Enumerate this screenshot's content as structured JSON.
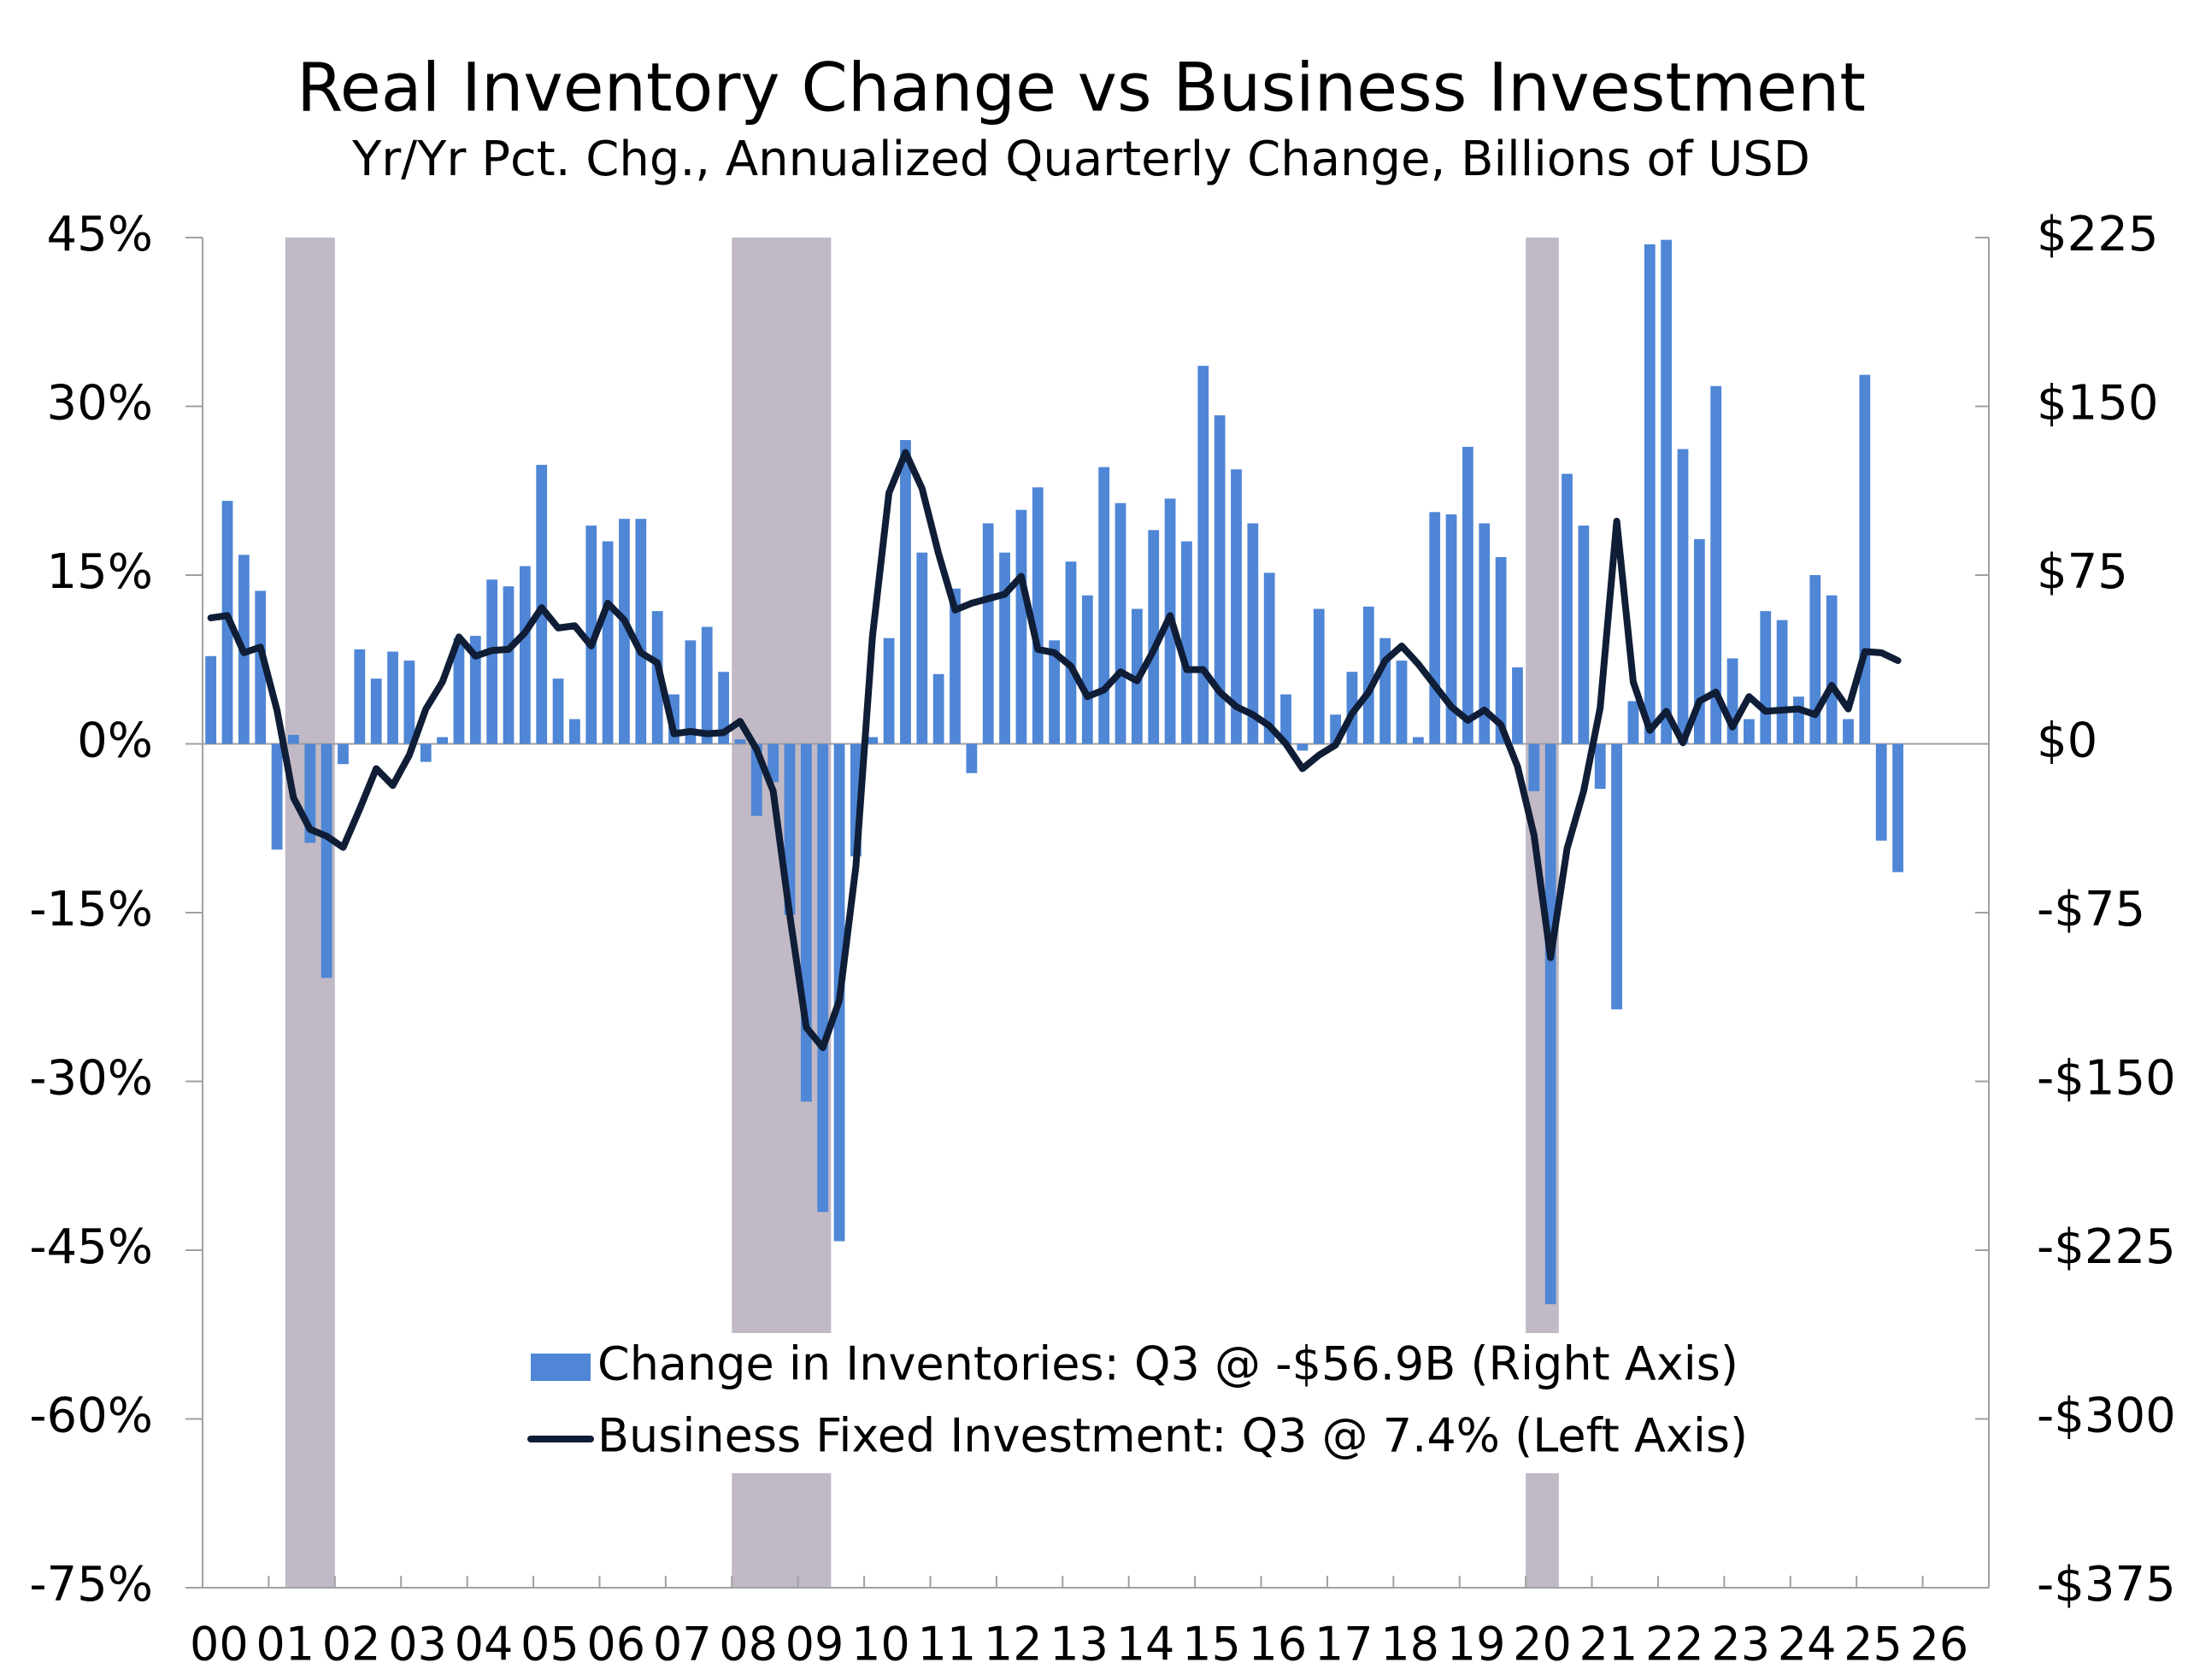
{
  "chart_data": {
    "type": "bar_line",
    "title": "Real Inventory Change vs Business Investment",
    "subtitle": "Yr/Yr Pct. Chg., Annualized Quarterly Change, Billions of USD",
    "x": [
      0,
      0.25,
      0.5,
      0.75,
      1,
      1.25,
      1.5,
      1.75,
      2,
      2.25,
      2.5,
      2.75,
      3,
      3.25,
      3.5,
      3.75,
      4,
      4.25,
      4.5,
      4.75,
      5,
      5.25,
      5.5,
      5.75,
      6,
      6.25,
      6.5,
      6.75,
      7,
      7.25,
      7.5,
      7.75,
      8,
      8.25,
      8.5,
      8.75,
      9,
      9.25,
      9.5,
      9.75,
      10,
      10.25,
      10.5,
      10.75,
      11,
      11.25,
      11.5,
      11.75,
      12,
      12.25,
      12.5,
      12.75,
      13,
      13.25,
      13.5,
      13.75,
      14,
      14.25,
      14.5,
      14.75,
      15,
      15.25,
      15.5,
      15.75,
      16,
      16.25,
      16.5,
      16.75,
      17,
      17.25,
      17.5,
      17.75,
      18,
      18.25,
      18.5,
      18.75,
      19,
      19.25,
      19.5,
      19.75,
      20,
      20.25,
      20.5,
      20.75,
      21,
      21.25,
      21.5,
      21.75,
      22,
      22.25,
      22.5,
      22.75,
      23,
      23.25,
      23.5,
      23.75,
      24,
      24.25,
      24.5,
      24.75,
      25,
      25.25,
      25.5
    ],
    "series": [
      {
        "name": "Change in Inventories: Q3 @ -$56.9B (Right Axis)",
        "type": "bar",
        "axis": "y2",
        "color": "#4f86d6",
        "values": [
          39,
          108,
          84,
          68,
          -47,
          4,
          -44,
          -104,
          -9,
          42,
          29,
          41,
          37,
          -8,
          3,
          47,
          48,
          73,
          70,
          79,
          124,
          29,
          11,
          97,
          90,
          100,
          100,
          59,
          22,
          46,
          52,
          32,
          2,
          -32,
          -17,
          -76,
          -159,
          -208,
          -221,
          -50,
          3,
          47,
          135,
          85,
          31,
          69,
          -13,
          98,
          85,
          104,
          114,
          46,
          81,
          66,
          123,
          107,
          60,
          95,
          109,
          90,
          168,
          146,
          122,
          98,
          76,
          22,
          -3,
          60,
          13,
          32,
          61,
          47,
          37,
          3,
          103,
          102,
          132,
          98,
          83,
          34,
          -21,
          -249,
          120,
          97,
          -20,
          -118,
          19,
          222,
          224,
          131,
          91,
          159,
          38,
          11,
          59,
          55,
          21,
          75,
          66,
          11,
          164,
          -43,
          -57
        ]
      },
      {
        "name": "Business Fixed Investment: Q3 @ 7.4% (Left Axis)",
        "type": "line",
        "axis": "y",
        "color": "#0f1d36",
        "values": [
          11.2,
          11.4,
          8.1,
          8.6,
          3,
          -4.8,
          -7.6,
          -8.2,
          -9.2,
          -5.8,
          -2.2,
          -3.7,
          -1,
          3.1,
          5.5,
          9.5,
          7.8,
          8.3,
          8.4,
          9.9,
          12.1,
          10.3,
          10.5,
          8.7,
          12.5,
          11,
          8.1,
          7.2,
          0.9,
          1.1,
          0.9,
          1,
          2,
          -0.5,
          -4.2,
          -15.2,
          -25.2,
          -27,
          -22.8,
          -10.9,
          9.5,
          22.3,
          25.9,
          22.7,
          16.9,
          11.9,
          12.5,
          12.9,
          13.3,
          14.9,
          8.4,
          8.1,
          6.9,
          4.2,
          4.8,
          6.4,
          5.6,
          8.3,
          11.4,
          6.6,
          6.6,
          4.6,
          3.3,
          2.6,
          1.6,
          0,
          -2.2,
          -1,
          -0.1,
          2.7,
          4.6,
          7.4,
          8.7,
          7.1,
          5.2,
          3.3,
          2.1,
          3,
          1.7,
          -2,
          -8.1,
          -19,
          -9.3,
          -4.2,
          3.2,
          19.8,
          5.5,
          1.2,
          2.9,
          0.1,
          3.8,
          4.6,
          1.5,
          4.2,
          2.9,
          3,
          3.1,
          2.6,
          5.2,
          3.1,
          8.2,
          8.1,
          7.4
        ]
      }
    ],
    "shading": [
      [
        1.25,
        2
      ],
      [
        8,
        9.5
      ],
      [
        20,
        20.5
      ]
    ],
    "shading_color": "#c1b9c5",
    "xlim": [
      0,
      27
    ],
    "xticks": [
      {
        "value": 0,
        "label": "00"
      },
      {
        "value": 1,
        "label": "01"
      },
      {
        "value": 2,
        "label": "02"
      },
      {
        "value": 3,
        "label": "03"
      },
      {
        "value": 4,
        "label": "04"
      },
      {
        "value": 5,
        "label": "05"
      },
      {
        "value": 6,
        "label": "06"
      },
      {
        "value": 7,
        "label": "07"
      },
      {
        "value": 8,
        "label": "08"
      },
      {
        "value": 9,
        "label": "09"
      },
      10,
      11,
      12,
      13,
      14,
      15,
      16,
      17,
      18,
      19,
      20,
      21,
      22,
      23,
      24,
      25,
      26
    ],
    "ylim": [
      -75,
      45
    ],
    "yticks": [
      {
        "value": -75,
        "label": "-75%"
      },
      {
        "value": -60,
        "label": "-60%"
      },
      {
        "value": -45,
        "label": "-45%"
      },
      {
        "value": -30,
        "label": "-30%"
      },
      {
        "value": -15,
        "label": "-15%"
      },
      {
        "value": 0,
        "label": "0%"
      },
      {
        "value": 15,
        "label": "15%"
      },
      {
        "value": 30,
        "label": "30%"
      },
      {
        "value": 45,
        "label": "45%"
      }
    ],
    "y2lim": [
      -375,
      225
    ],
    "y2ticks": [
      {
        "value": -375,
        "label": "-$375"
      },
      {
        "value": -300,
        "label": "-$300"
      },
      {
        "value": -225,
        "label": "-$225"
      },
      {
        "value": -150,
        "label": "-$150"
      },
      {
        "value": -75,
        "label": "-$75"
      },
      {
        "value": 0,
        "label": "$0"
      },
      {
        "value": 75,
        "label": "$75"
      },
      {
        "value": 150,
        "label": "$150"
      },
      {
        "value": 225,
        "label": "$225"
      }
    ],
    "grid": false,
    "legend": "bottom"
  }
}
